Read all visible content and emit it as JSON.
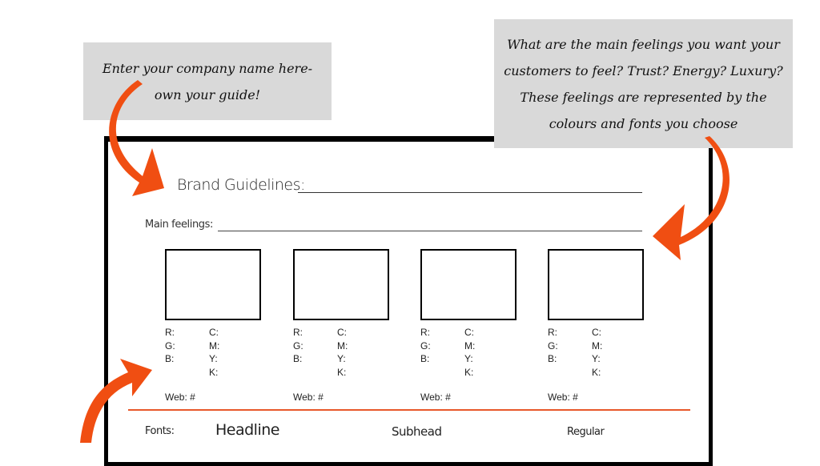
{
  "callouts": {
    "company": "Enter your company name here- own your guide!",
    "feelings": "What are the main feelings you want your customers to feel? Trust? Energy? Luxury? These feelings are represented by the colours and fonts you choose"
  },
  "sheet": {
    "title": "Brand Guidelines:",
    "main_feelings": "Main feelings:",
    "swatches": [
      {
        "r": "R:",
        "g": "G:",
        "b": "B:",
        "c": "C:",
        "m": "M:",
        "y": "Y:",
        "k": "K:",
        "web": "Web: #"
      },
      {
        "r": "R:",
        "g": "G:",
        "b": "B:",
        "c": "C:",
        "m": "M:",
        "y": "Y:",
        "k": "K:",
        "web": "Web: #"
      },
      {
        "r": "R:",
        "g": "G:",
        "b": "B:",
        "c": "C:",
        "m": "M:",
        "y": "Y:",
        "k": "K:",
        "web": "Web: #"
      },
      {
        "r": "R:",
        "g": "G:",
        "b": "B:",
        "c": "C:",
        "m": "M:",
        "y": "Y:",
        "k": "K:",
        "web": "Web: #"
      }
    ],
    "fonts": {
      "label": "Fonts:",
      "headline": "Headline",
      "subhead": "Subhead",
      "regular": "Regular"
    }
  },
  "colors": {
    "accent": "#f04e12",
    "note_bg": "#d9d9d9"
  }
}
